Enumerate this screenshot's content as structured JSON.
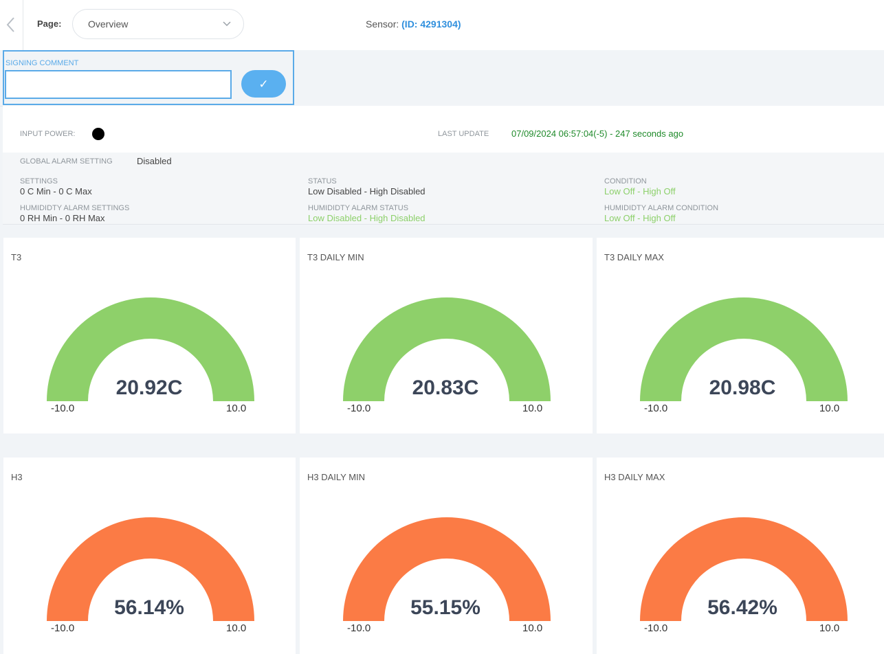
{
  "header": {
    "page_label": "Page:",
    "page_select_value": "Overview",
    "sensor_label": "Sensor:",
    "sensor_id": "(ID: 4291304)"
  },
  "signing": {
    "label": "SIGNING COMMENT",
    "input_value": "",
    "submit_label": "✓"
  },
  "info": {
    "input_power_label": "INPUT POWER:",
    "last_update_label": "LAST UPDATE",
    "last_update_value": "07/09/2024 06:57:04(-5) - 247 seconds ago",
    "global_alarm_label": "GLOBAL ALARM SETTING",
    "global_alarm_value": "Disabled",
    "settings_label": "SETTINGS",
    "settings_value": "0 C Min - 0 C Max",
    "status_label": "STATUS",
    "status_value": "Low Disabled - High Disabled",
    "condition_label": "CONDITION",
    "condition_value": "Low Off - High Off",
    "hum_settings_label": "HUMIDIDTY ALARM SETTINGS",
    "hum_settings_value": "0 RH Min - 0 RH Max",
    "hum_status_label": "HUMIDIDTY ALARM STATUS",
    "hum_status_value": "Low Disabled - High Disabled",
    "hum_condition_label": "HUMIDIDTY ALARM CONDITION",
    "hum_condition_value": "Low Off - High Off"
  },
  "colors": {
    "accent": "#5aaae8",
    "temp_gauge": "#8ed06a",
    "humidity_gauge": "#fb7b45",
    "input_power_dot": "#000000"
  },
  "cards": [
    {
      "title": "T3",
      "value": "20.92C",
      "min": "-10.0",
      "max": "10.0",
      "kind": "temp"
    },
    {
      "title": "T3 DAILY MIN",
      "value": "20.83C",
      "min": "-10.0",
      "max": "10.0",
      "kind": "temp"
    },
    {
      "title": "T3 DAILY MAX",
      "value": "20.98C",
      "min": "-10.0",
      "max": "10.0",
      "kind": "temp"
    },
    {
      "title": "H3",
      "value": "56.14%",
      "min": "-10.0",
      "max": "10.0",
      "kind": "humidity"
    },
    {
      "title": "H3 DAILY MIN",
      "value": "55.15%",
      "min": "-10.0",
      "max": "10.0",
      "kind": "humidity"
    },
    {
      "title": "H3 DAILY MAX",
      "value": "56.42%",
      "min": "-10.0",
      "max": "10.0",
      "kind": "humidity"
    }
  ]
}
